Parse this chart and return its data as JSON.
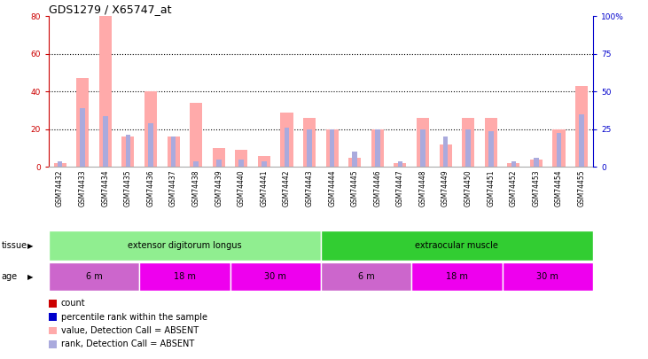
{
  "title": "GDS1279 / X65747_at",
  "samples": [
    "GSM74432",
    "GSM74433",
    "GSM74434",
    "GSM74435",
    "GSM74436",
    "GSM74437",
    "GSM74438",
    "GSM74439",
    "GSM74440",
    "GSM74441",
    "GSM74442",
    "GSM74443",
    "GSM74444",
    "GSM74445",
    "GSM74446",
    "GSM74447",
    "GSM74448",
    "GSM74449",
    "GSM74450",
    "GSM74451",
    "GSM74452",
    "GSM74453",
    "GSM74454",
    "GSM74455"
  ],
  "absent_count": [
    2,
    47,
    80,
    16,
    40,
    16,
    34,
    10,
    9,
    6,
    29,
    26,
    20,
    5,
    20,
    2,
    26,
    12,
    26,
    26,
    2,
    4,
    20,
    43
  ],
  "absent_rank": [
    3,
    31,
    27,
    17,
    23,
    16,
    3,
    4,
    4,
    3,
    21,
    20,
    20,
    8,
    20,
    3,
    20,
    16,
    20,
    19,
    3,
    5,
    18,
    28
  ],
  "tissue_groups": [
    {
      "label": "extensor digitorum longus",
      "start": 0,
      "end": 12,
      "color": "#90EE90"
    },
    {
      "label": "extraocular muscle",
      "start": 12,
      "end": 24,
      "color": "#32CD32"
    }
  ],
  "age_groups": [
    {
      "label": "6 m",
      "start": 0,
      "end": 4,
      "color": "#CC66CC"
    },
    {
      "label": "18 m",
      "start": 4,
      "end": 8,
      "color": "#EE00EE"
    },
    {
      "label": "30 m",
      "start": 8,
      "end": 12,
      "color": "#EE00EE"
    },
    {
      "label": "6 m",
      "start": 12,
      "end": 16,
      "color": "#CC66CC"
    },
    {
      "label": "18 m",
      "start": 16,
      "end": 20,
      "color": "#EE00EE"
    },
    {
      "label": "30 m",
      "start": 20,
      "end": 24,
      "color": "#EE00EE"
    }
  ],
  "left_ylim": [
    0,
    80
  ],
  "right_ylim": [
    0,
    100
  ],
  "left_yticks": [
    0,
    20,
    40,
    60,
    80
  ],
  "right_yticks": [
    0,
    25,
    50,
    75,
    100
  ],
  "right_yticklabels": [
    "0",
    "25",
    "50",
    "75",
    "100%"
  ],
  "color_count": "#cc0000",
  "color_percentile": "#0000cc",
  "color_absent_count": "#ffaaaa",
  "color_absent_rank": "#aaaadd",
  "legend_items": [
    {
      "label": "count",
      "color": "#cc0000"
    },
    {
      "label": "percentile rank within the sample",
      "color": "#0000cc"
    },
    {
      "label": "value, Detection Call = ABSENT",
      "color": "#ffaaaa"
    },
    {
      "label": "rank, Detection Call = ABSENT",
      "color": "#aaaadd"
    }
  ],
  "background_color": "#ffffff",
  "title_fontsize": 9,
  "tick_fontsize": 6.5,
  "grid_yticks": [
    20,
    40,
    60
  ]
}
